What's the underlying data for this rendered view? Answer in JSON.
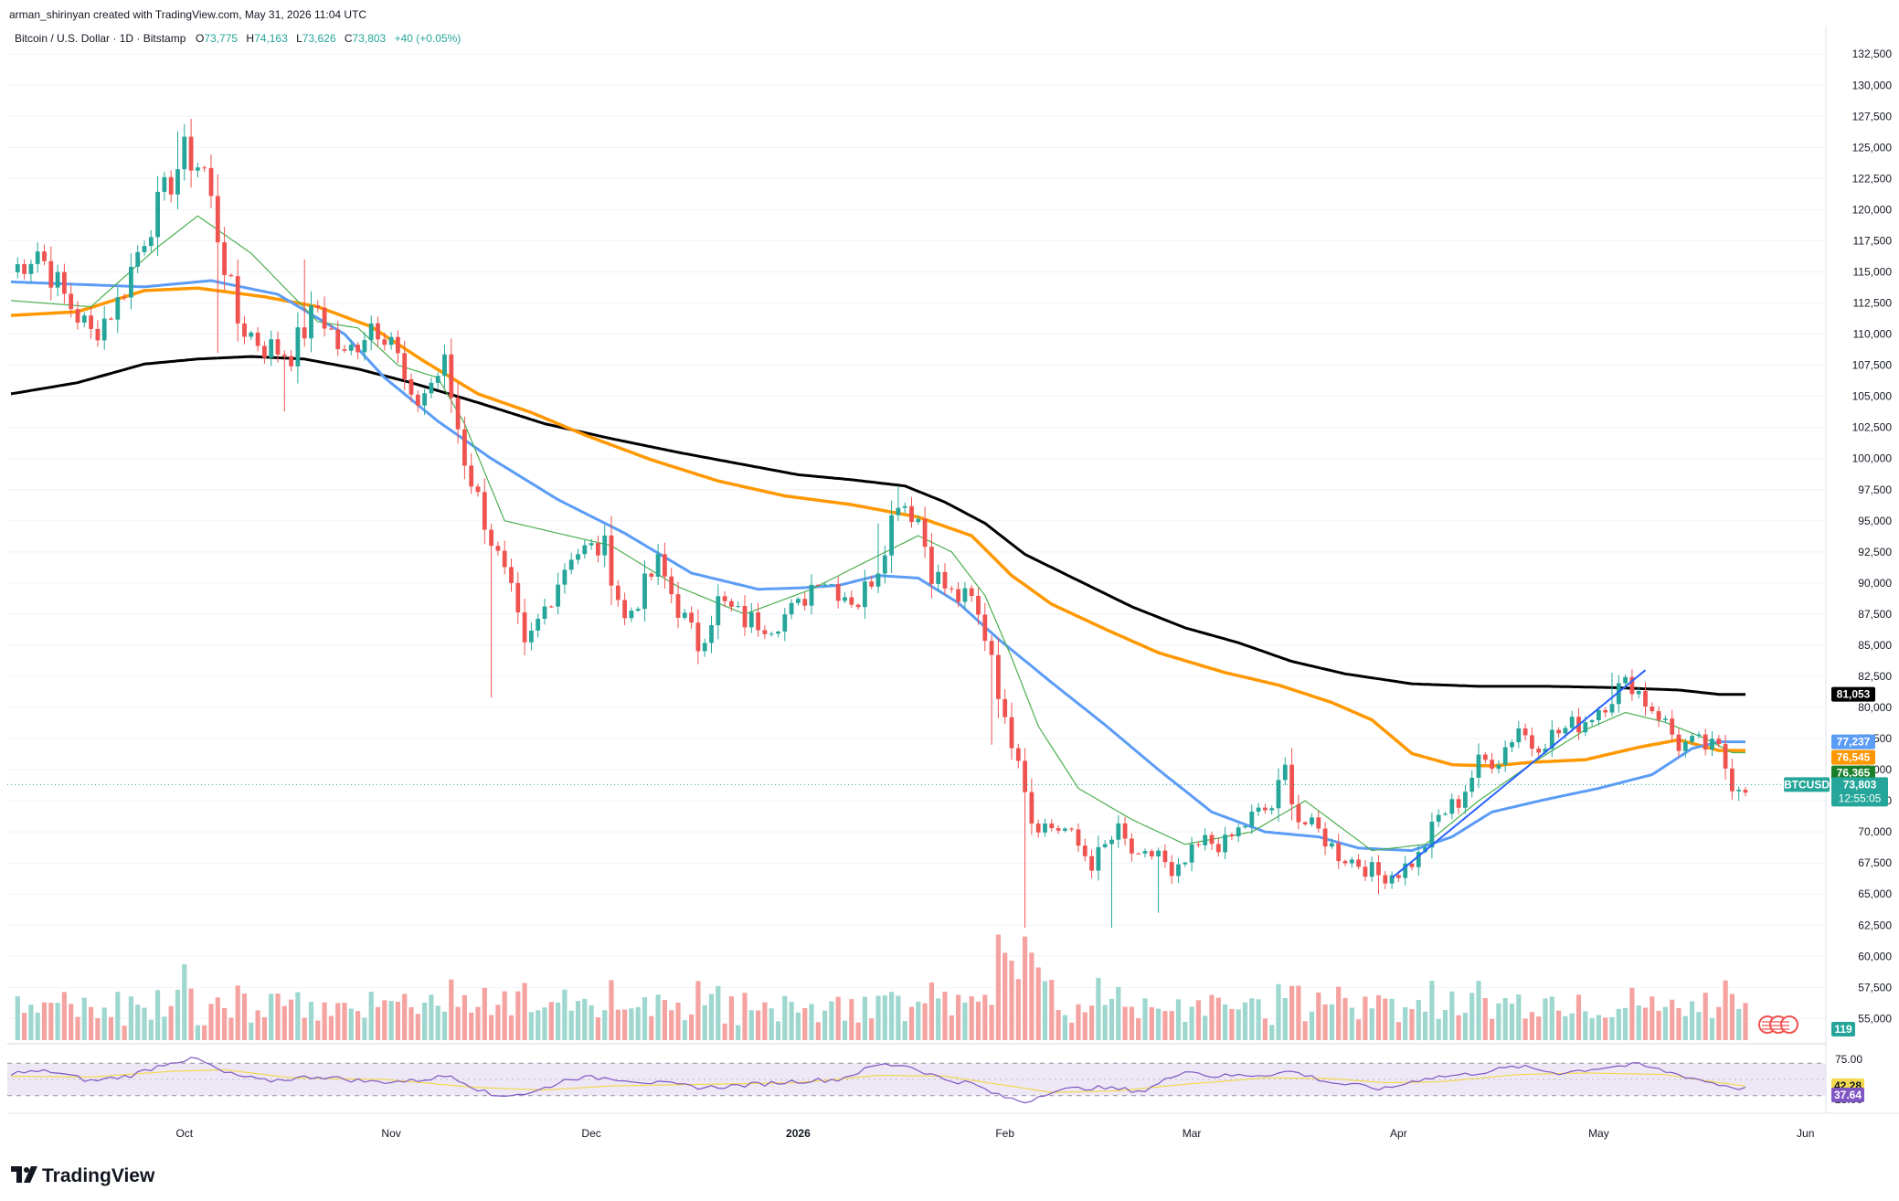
{
  "header": {
    "credit": "arman_shirinyan created with TradingView.com, May 31, 2026 11:04 UTC",
    "symbol_desc": "Bitcoin / U.S. Dollar · 1D · Bitstamp",
    "o_label": "O",
    "o_value": "73,775",
    "h_label": "H",
    "h_value": "74,163",
    "l_label": "L",
    "l_value": "73,626",
    "c_label": "C",
    "c_value": "73,803",
    "change": "+40 (+0.05%)"
  },
  "brand": {
    "logo_text": "TradingView"
  },
  "colors": {
    "up": "#26a69a",
    "down": "#ef5350",
    "vol_up": "#9dd7cf",
    "vol_down": "#f5a3a1",
    "ma_fast": "#4caf50",
    "ma_blue": "#5b9cf6",
    "ma_orange": "#ff9800",
    "ma_black": "#000000",
    "rsi_line": "#7e57c2",
    "rsi_ma": "#f2d94e",
    "rsi_band": "#ede7f6",
    "axis_text": "#131722",
    "grid": "#f0f3fa"
  },
  "x_axis": {
    "ticks": [
      {
        "label": "Oct",
        "day": 26
      },
      {
        "label": "Nov",
        "day": 57
      },
      {
        "label": "Dec",
        "day": 87
      },
      {
        "label": "2026",
        "day": 118
      },
      {
        "label": "Feb",
        "day": 149
      },
      {
        "label": "Mar",
        "day": 177
      },
      {
        "label": "Apr",
        "day": 208
      },
      {
        "label": "May",
        "day": 238
      },
      {
        "label": "Jun",
        "day": 269
      }
    ]
  },
  "price_axis": {
    "ticks": [
      "132,500",
      "130,000",
      "127,500",
      "125,000",
      "122,500",
      "120,000",
      "117,500",
      "115,000",
      "112,500",
      "110,000",
      "107,500",
      "105,000",
      "102,500",
      "100,000",
      "97,500",
      "95,000",
      "92,500",
      "90,000",
      "87,500",
      "85,000",
      "82,500",
      "80,000",
      "77,500",
      "75,000",
      "72,500",
      "70,000",
      "67,500",
      "65,000",
      "62,500",
      "60,000",
      "57,500",
      "55,000"
    ],
    "tick_values": [
      132500,
      130000,
      127500,
      125000,
      122500,
      120000,
      117500,
      115000,
      112500,
      110000,
      107500,
      105000,
      102500,
      100000,
      97500,
      95000,
      92500,
      90000,
      87500,
      85000,
      82500,
      80000,
      77500,
      75000,
      72500,
      70000,
      67500,
      65000,
      62500,
      60000,
      57500,
      55000
    ],
    "range": [
      54000,
      134500
    ]
  },
  "price_labels": [
    {
      "text": "81,053",
      "value": 81053,
      "color": "#000000"
    },
    {
      "text": "77,237",
      "value": 77237,
      "color": "#5b9cf6"
    },
    {
      "text": "76,545",
      "value": 76545,
      "color": "#ff9800"
    },
    {
      "text": "76,365",
      "value": 76365,
      "color": "#1b7f2a"
    }
  ],
  "last_price": {
    "symbol": "BTCUSD",
    "value_text": "73,803",
    "value": 73803,
    "countdown": "12:55:05"
  },
  "volume_badge": "119",
  "rsi": {
    "ticks": [
      "75.00",
      "25.00"
    ],
    "tick_values": [
      75,
      25
    ],
    "value_rsi": "37.64",
    "value_ma": "42.28",
    "range": [
      15,
      85
    ],
    "band": [
      30,
      70
    ]
  },
  "chart_data": {
    "type": "candlestick",
    "title": "Bitcoin / U.S. Dollar · 1D · Bitstamp",
    "anchors": {
      "close": [
        [
          0,
          115000
        ],
        [
          4,
          116800
        ],
        [
          8,
          113000
        ],
        [
          12,
          110000
        ],
        [
          16,
          112500
        ],
        [
          20,
          118000
        ],
        [
          26,
          124500
        ],
        [
          29,
          123200
        ],
        [
          31,
          118000
        ],
        [
          34,
          111000
        ],
        [
          38,
          109000
        ],
        [
          42,
          108500
        ],
        [
          46,
          112200
        ],
        [
          50,
          108000
        ],
        [
          54,
          111000
        ],
        [
          57,
          110000
        ],
        [
          60,
          104000
        ],
        [
          65,
          107500
        ],
        [
          68,
          100000
        ],
        [
          72,
          93500
        ],
        [
          75,
          89000
        ],
        [
          77,
          84500
        ],
        [
          80,
          88000
        ],
        [
          84,
          92500
        ],
        [
          89,
          92800
        ],
        [
          92,
          87000
        ],
        [
          97,
          91500
        ],
        [
          100,
          88000
        ],
        [
          103,
          85000
        ],
        [
          106,
          88500
        ],
        [
          110,
          87000
        ],
        [
          114,
          86800
        ],
        [
          118,
          88000
        ],
        [
          121,
          90800
        ],
        [
          124,
          89500
        ],
        [
          127,
          88500
        ],
        [
          130,
          91500
        ],
        [
          133,
          97000
        ],
        [
          136,
          95200
        ],
        [
          138,
          91000
        ],
        [
          141,
          89000
        ],
        [
          144,
          88500
        ],
        [
          147,
          84500
        ],
        [
          149,
          78500
        ],
        [
          151,
          76500
        ],
        [
          153,
          71000
        ],
        [
          155,
          70500
        ],
        [
          158,
          70200
        ],
        [
          162,
          67500
        ],
        [
          166,
          70000
        ],
        [
          169,
          67500
        ],
        [
          172,
          68500
        ],
        [
          174,
          66000
        ],
        [
          177,
          68200
        ],
        [
          179,
          69200
        ],
        [
          182,
          69000
        ],
        [
          186,
          71200
        ],
        [
          189,
          72000
        ],
        [
          191,
          75000
        ],
        [
          193,
          71000
        ],
        [
          196,
          70000
        ],
        [
          199,
          68200
        ],
        [
          202,
          67500
        ],
        [
          205,
          66500
        ],
        [
          208,
          66800
        ],
        [
          211,
          68000
        ],
        [
          214,
          71200
        ],
        [
          217,
          72500
        ],
        [
          220,
          75500
        ],
        [
          223,
          76000
        ],
        [
          226,
          78500
        ],
        [
          228,
          77000
        ],
        [
          232,
          78000
        ],
        [
          236,
          79000
        ],
        [
          239,
          80500
        ],
        [
          241,
          81500
        ],
        [
          243,
          82000
        ],
        [
          245,
          80500
        ],
        [
          247,
          79500
        ],
        [
          250,
          77000
        ],
        [
          253,
          77000
        ],
        [
          256,
          76500
        ],
        [
          258,
          74000
        ],
        [
          260,
          73800
        ]
      ],
      "high_wicks": [
        [
          25,
          126300
        ],
        [
          44,
          116000
        ],
        [
          54,
          111500
        ],
        [
          130,
          94800
        ],
        [
          133,
          97800
        ],
        [
          191,
          76000
        ],
        [
          240,
          82800
        ]
      ],
      "low_wicks": [
        [
          31,
          108500
        ],
        [
          41,
          103800
        ],
        [
          72,
          80800
        ],
        [
          147,
          77000
        ],
        [
          152,
          62300
        ],
        [
          165,
          62300
        ],
        [
          172,
          63500
        ],
        [
          205,
          65000
        ],
        [
          259,
          72500
        ]
      ]
    },
    "ma_fast": [
      [
        0,
        112700
      ],
      [
        12,
        112200
      ],
      [
        22,
        117000
      ],
      [
        28,
        119500
      ],
      [
        36,
        116500
      ],
      [
        46,
        111000
      ],
      [
        52,
        110500
      ],
      [
        58,
        107500
      ],
      [
        64,
        106500
      ],
      [
        68,
        102800
      ],
      [
        74,
        95000
      ],
      [
        82,
        94000
      ],
      [
        90,
        93000
      ],
      [
        100,
        89700
      ],
      [
        110,
        87500
      ],
      [
        120,
        89500
      ],
      [
        130,
        92200
      ],
      [
        136,
        93800
      ],
      [
        141,
        92500
      ],
      [
        146,
        89000
      ],
      [
        150,
        84000
      ],
      [
        154,
        78500
      ],
      [
        160,
        73500
      ],
      [
        168,
        71000
      ],
      [
        176,
        69000
      ],
      [
        186,
        70000
      ],
      [
        194,
        72500
      ],
      [
        204,
        68500
      ],
      [
        212,
        69000
      ],
      [
        220,
        72500
      ],
      [
        228,
        75500
      ],
      [
        236,
        78200
      ],
      [
        242,
        79600
      ],
      [
        248,
        78800
      ],
      [
        254,
        77500
      ],
      [
        258,
        76365
      ],
      [
        260,
        76365
      ]
    ],
    "ma_blue": [
      [
        0,
        114200
      ],
      [
        10,
        114000
      ],
      [
        20,
        113800
      ],
      [
        30,
        114300
      ],
      [
        40,
        113200
      ],
      [
        50,
        110000
      ],
      [
        56,
        106500
      ],
      [
        64,
        103000
      ],
      [
        72,
        100000
      ],
      [
        82,
        96700
      ],
      [
        92,
        94000
      ],
      [
        102,
        90800
      ],
      [
        112,
        89500
      ],
      [
        118,
        89600
      ],
      [
        124,
        89800
      ],
      [
        130,
        90600
      ],
      [
        136,
        90400
      ],
      [
        142,
        88400
      ],
      [
        148,
        85500
      ],
      [
        156,
        82000
      ],
      [
        164,
        78600
      ],
      [
        172,
        75000
      ],
      [
        180,
        71600
      ],
      [
        188,
        70000
      ],
      [
        196,
        69600
      ],
      [
        202,
        68700
      ],
      [
        210,
        68500
      ],
      [
        216,
        69600
      ],
      [
        222,
        71600
      ],
      [
        230,
        72600
      ],
      [
        238,
        73500
      ],
      [
        246,
        74600
      ],
      [
        252,
        76700
      ],
      [
        256,
        77237
      ],
      [
        260,
        77237
      ]
    ],
    "ma_orange": [
      [
        0,
        111500
      ],
      [
        10,
        111800
      ],
      [
        20,
        113500
      ],
      [
        28,
        113700
      ],
      [
        38,
        113000
      ],
      [
        46,
        112200
      ],
      [
        54,
        110600
      ],
      [
        62,
        107800
      ],
      [
        70,
        105200
      ],
      [
        78,
        103700
      ],
      [
        86,
        101900
      ],
      [
        96,
        99900
      ],
      [
        106,
        98200
      ],
      [
        116,
        97000
      ],
      [
        126,
        96300
      ],
      [
        136,
        95300
      ],
      [
        144,
        93800
      ],
      [
        150,
        90600
      ],
      [
        156,
        88300
      ],
      [
        164,
        86300
      ],
      [
        172,
        84400
      ],
      [
        182,
        82800
      ],
      [
        190,
        81800
      ],
      [
        198,
        80400
      ],
      [
        204,
        79000
      ],
      [
        210,
        76300
      ],
      [
        216,
        75400
      ],
      [
        222,
        75300
      ],
      [
        228,
        75600
      ],
      [
        236,
        75800
      ],
      [
        244,
        76800
      ],
      [
        250,
        77400
      ],
      [
        256,
        76545
      ],
      [
        260,
        76545
      ]
    ],
    "ma_black": [
      [
        0,
        105200
      ],
      [
        10,
        106100
      ],
      [
        20,
        107600
      ],
      [
        28,
        108000
      ],
      [
        36,
        108200
      ],
      [
        44,
        108000
      ],
      [
        52,
        107200
      ],
      [
        60,
        106100
      ],
      [
        70,
        104500
      ],
      [
        80,
        102800
      ],
      [
        90,
        101600
      ],
      [
        100,
        100500
      ],
      [
        110,
        99500
      ],
      [
        118,
        98700
      ],
      [
        126,
        98300
      ],
      [
        134,
        97800
      ],
      [
        140,
        96500
      ],
      [
        146,
        94800
      ],
      [
        152,
        92300
      ],
      [
        160,
        90200
      ],
      [
        168,
        88100
      ],
      [
        176,
        86400
      ],
      [
        184,
        85200
      ],
      [
        192,
        83700
      ],
      [
        200,
        82700
      ],
      [
        210,
        81900
      ],
      [
        220,
        81700
      ],
      [
        230,
        81700
      ],
      [
        240,
        81600
      ],
      [
        250,
        81400
      ],
      [
        256,
        81053
      ],
      [
        260,
        81053
      ]
    ],
    "volume": {
      "range": [
        0,
        130
      ],
      "base": 18,
      "max_scale": 110
    },
    "rsi_series": {
      "anchors": [
        [
          0,
          58
        ],
        [
          6,
          60
        ],
        [
          12,
          48
        ],
        [
          18,
          55
        ],
        [
          24,
          72
        ],
        [
          28,
          75
        ],
        [
          32,
          58
        ],
        [
          38,
          48
        ],
        [
          46,
          54
        ],
        [
          54,
          47
        ],
        [
          60,
          48
        ],
        [
          66,
          55
        ],
        [
          72,
          30
        ],
        [
          78,
          33
        ],
        [
          84,
          52
        ],
        [
          90,
          52
        ],
        [
          96,
          46
        ],
        [
          104,
          40
        ],
        [
          110,
          43
        ],
        [
          118,
          48
        ],
        [
          124,
          50
        ],
        [
          130,
          68
        ],
        [
          134,
          68
        ],
        [
          140,
          50
        ],
        [
          144,
          45
        ],
        [
          148,
          30
        ],
        [
          152,
          22
        ],
        [
          156,
          36
        ],
        [
          162,
          40
        ],
        [
          170,
          36
        ],
        [
          176,
          62
        ],
        [
          180,
          54
        ],
        [
          188,
          56
        ],
        [
          192,
          60
        ],
        [
          198,
          46
        ],
        [
          206,
          38
        ],
        [
          212,
          52
        ],
        [
          218,
          56
        ],
        [
          226,
          66
        ],
        [
          232,
          58
        ],
        [
          240,
          66
        ],
        [
          244,
          68
        ],
        [
          250,
          56
        ],
        [
          256,
          44
        ],
        [
          260,
          38
        ]
      ]
    },
    "rsi_ma": {
      "anchors": [
        [
          0,
          54
        ],
        [
          12,
          53
        ],
        [
          24,
          60
        ],
        [
          32,
          62
        ],
        [
          42,
          52
        ],
        [
          56,
          50
        ],
        [
          70,
          40
        ],
        [
          80,
          37
        ],
        [
          90,
          42
        ],
        [
          104,
          44
        ],
        [
          118,
          46
        ],
        [
          130,
          55
        ],
        [
          140,
          54
        ],
        [
          148,
          44
        ],
        [
          156,
          34
        ],
        [
          166,
          36
        ],
        [
          176,
          44
        ],
        [
          188,
          52
        ],
        [
          198,
          51
        ],
        [
          206,
          46
        ],
        [
          214,
          47
        ],
        [
          226,
          56
        ],
        [
          236,
          58
        ],
        [
          248,
          56
        ],
        [
          256,
          46
        ],
        [
          260,
          42
        ]
      ]
    },
    "trendline": {
      "from": {
        "day": 207,
        "price": 66300
      },
      "to": {
        "day": 245,
        "price": 83000
      }
    },
    "ylim": [
      54000,
      134500
    ],
    "day_count": 261
  }
}
